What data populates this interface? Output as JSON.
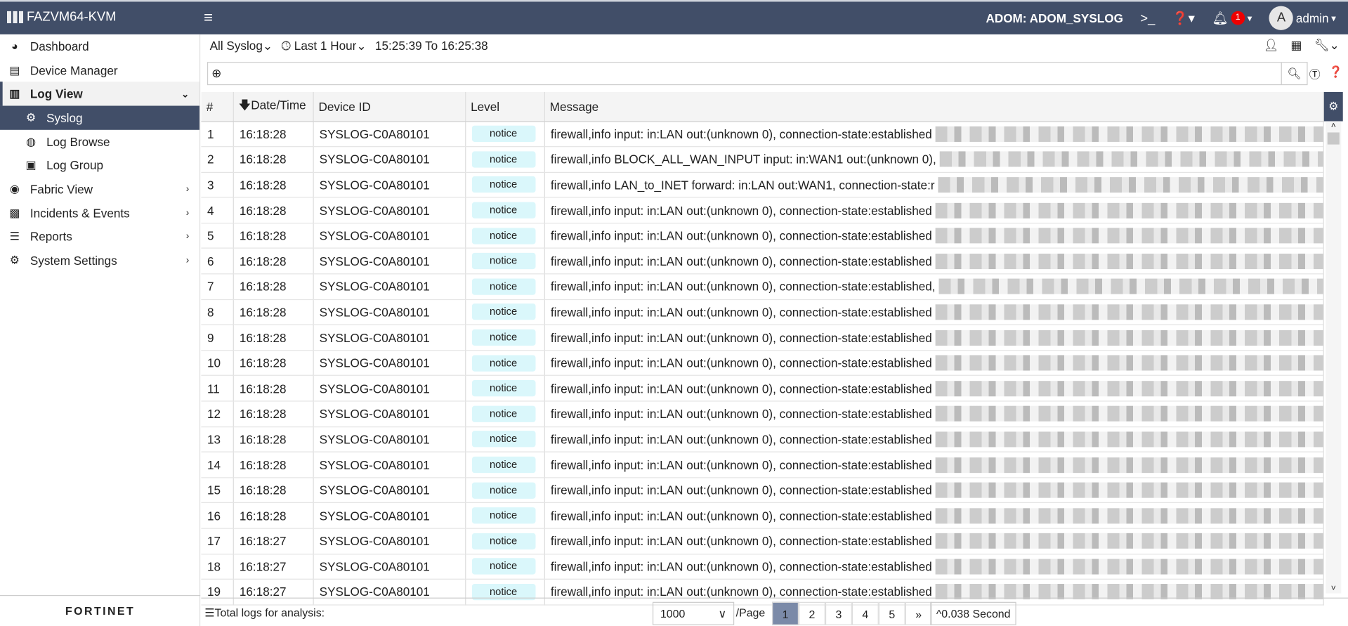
{
  "header": {
    "app_name": "FAZVM64-KVM",
    "adom": "ADOM: ADOM_SYSLOG",
    "notification_count": "1",
    "avatar_letter": "A",
    "user": "admin"
  },
  "sidebar": {
    "items": [
      {
        "label": "Dashboard",
        "icon": "dashboard-icon"
      },
      {
        "label": "Device Manager",
        "icon": "device-manager-icon"
      },
      {
        "label": "Log View",
        "icon": "log-view-icon"
      },
      {
        "label": "Syslog",
        "icon": "syslog-icon"
      },
      {
        "label": "Log Browse",
        "icon": "log-browse-icon"
      },
      {
        "label": "Log Group",
        "icon": "log-group-icon"
      },
      {
        "label": "Fabric View",
        "icon": "fabric-view-icon"
      },
      {
        "label": "Incidents & Events",
        "icon": "incidents-icon"
      },
      {
        "label": "Reports",
        "icon": "reports-icon"
      },
      {
        "label": "System Settings",
        "icon": "gear-icon"
      }
    ],
    "brand": "FORTINET"
  },
  "filter": {
    "source": "All Syslog",
    "range": "Last 1 Hour",
    "from_to": "15:25:39 To 16:25:38",
    "search_placeholder": ""
  },
  "table": {
    "columns": [
      "#",
      "Date/Time",
      "Device ID",
      "Level",
      "Message"
    ],
    "rows": [
      [
        "1",
        "16:18:28",
        "SYSLOG-C0A80101",
        "notice",
        "firewall,info input: in:LAN out:(unknown 0), connection-state:established"
      ],
      [
        "2",
        "16:18:28",
        "SYSLOG-C0A80101",
        "notice",
        "firewall,info BLOCK_ALL_WAN_INPUT input: in:WAN1 out:(unknown 0),"
      ],
      [
        "3",
        "16:18:28",
        "SYSLOG-C0A80101",
        "notice",
        "firewall,info LAN_to_INET forward: in:LAN out:WAN1, connection-state:r"
      ],
      [
        "4",
        "16:18:28",
        "SYSLOG-C0A80101",
        "notice",
        "firewall,info input: in:LAN out:(unknown 0), connection-state:established"
      ],
      [
        "5",
        "16:18:28",
        "SYSLOG-C0A80101",
        "notice",
        "firewall,info input: in:LAN out:(unknown 0), connection-state:established"
      ],
      [
        "6",
        "16:18:28",
        "SYSLOG-C0A80101",
        "notice",
        "firewall,info input: in:LAN out:(unknown 0), connection-state:established"
      ],
      [
        "7",
        "16:18:28",
        "SYSLOG-C0A80101",
        "notice",
        "firewall,info input: in:LAN out:(unknown 0), connection-state:established,"
      ],
      [
        "8",
        "16:18:28",
        "SYSLOG-C0A80101",
        "notice",
        "firewall,info input: in:LAN out:(unknown 0), connection-state:established"
      ],
      [
        "9",
        "16:18:28",
        "SYSLOG-C0A80101",
        "notice",
        "firewall,info input: in:LAN out:(unknown 0), connection-state:established"
      ],
      [
        "10",
        "16:18:28",
        "SYSLOG-C0A80101",
        "notice",
        "firewall,info input: in:LAN out:(unknown 0), connection-state:established"
      ],
      [
        "11",
        "16:18:28",
        "SYSLOG-C0A80101",
        "notice",
        "firewall,info input: in:LAN out:(unknown 0), connection-state:established"
      ],
      [
        "12",
        "16:18:28",
        "SYSLOG-C0A80101",
        "notice",
        "firewall,info input: in:LAN out:(unknown 0), connection-state:established"
      ],
      [
        "13",
        "16:18:28",
        "SYSLOG-C0A80101",
        "notice",
        "firewall,info input: in:LAN out:(unknown 0), connection-state:established"
      ],
      [
        "14",
        "16:18:28",
        "SYSLOG-C0A80101",
        "notice",
        "firewall,info input: in:LAN out:(unknown 0), connection-state:established"
      ],
      [
        "15",
        "16:18:28",
        "SYSLOG-C0A80101",
        "notice",
        "firewall,info input: in:LAN out:(unknown 0), connection-state:established"
      ],
      [
        "16",
        "16:18:28",
        "SYSLOG-C0A80101",
        "notice",
        "firewall,info input: in:LAN out:(unknown 0), connection-state:established"
      ],
      [
        "17",
        "16:18:27",
        "SYSLOG-C0A80101",
        "notice",
        "firewall,info input: in:LAN out:(unknown 0), connection-state:established"
      ],
      [
        "18",
        "16:18:27",
        "SYSLOG-C0A80101",
        "notice",
        "firewall,info input: in:LAN out:(unknown 0), connection-state:established"
      ],
      [
        "19",
        "16:18:27",
        "SYSLOG-C0A80101",
        "notice",
        "firewall,info input: in:LAN out:(unknown 0), connection-state:established"
      ]
    ]
  },
  "footer": {
    "total_label": "Total logs for analysis:",
    "page_size": "1000",
    "per_page": "/Page",
    "pages": [
      "1",
      "2",
      "3",
      "4",
      "5",
      "»"
    ],
    "current_page": "1",
    "elapsed": "0.038 Second"
  },
  "colors": {
    "header_bg": "#414e68",
    "notice_bg": "#daf7fb",
    "badge": "#e00000"
  }
}
